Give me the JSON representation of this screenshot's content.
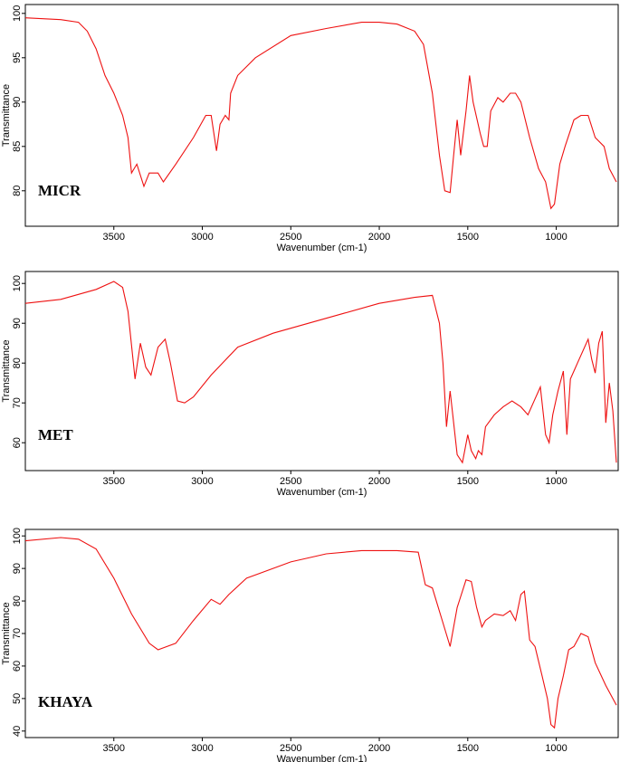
{
  "chart_data": [
    {
      "type": "line",
      "annotation": "MICR",
      "xlabel": "Wavenumber (cm-1)",
      "ylabel": "Transmittance",
      "color": "#ee1111",
      "xlim": [
        4000,
        650
      ],
      "xticks": [
        3500,
        3000,
        2500,
        2000,
        1500,
        1000
      ],
      "ylim": [
        76,
        101
      ],
      "yticks": [
        80,
        85,
        90,
        95,
        100
      ],
      "x": [
        4000,
        3800,
        3700,
        3650,
        3600,
        3550,
        3500,
        3450,
        3420,
        3400,
        3370,
        3330,
        3300,
        3250,
        3220,
        3150,
        3050,
        2980,
        2950,
        2920,
        2900,
        2870,
        2850,
        2840,
        2800,
        2700,
        2500,
        2300,
        2100,
        2000,
        1900,
        1800,
        1750,
        1700,
        1660,
        1630,
        1600,
        1580,
        1560,
        1540,
        1510,
        1490,
        1470,
        1430,
        1410,
        1390,
        1370,
        1330,
        1300,
        1260,
        1230,
        1200,
        1150,
        1100,
        1060,
        1030,
        1010,
        980,
        950,
        900,
        860,
        820,
        780,
        730,
        700,
        660
      ],
      "values": [
        99.5,
        99.3,
        99,
        98,
        96,
        93,
        91,
        88.5,
        86,
        82,
        83,
        80.5,
        82,
        82,
        81,
        83,
        86,
        88.5,
        88.5,
        84.5,
        87.5,
        88.5,
        88,
        91,
        93,
        95,
        97.5,
        98.3,
        99,
        99,
        98.8,
        98,
        96.5,
        91,
        84,
        80,
        79.8,
        84,
        88,
        84,
        89,
        93,
        90,
        86.5,
        85,
        85,
        89,
        90.5,
        90,
        91,
        91,
        90,
        86,
        82.5,
        81,
        78,
        78.5,
        83,
        85,
        88,
        88.5,
        88.5,
        86,
        85,
        82.5,
        81
      ]
    },
    {
      "type": "line",
      "annotation": "MET",
      "xlabel": "Wavenumber (cm-1)",
      "ylabel": "Transmittance",
      "color": "#ee1111",
      "xlim": [
        4000,
        650
      ],
      "xticks": [
        3500,
        3000,
        2500,
        2000,
        1500,
        1000
      ],
      "ylim": [
        53,
        103
      ],
      "yticks": [
        60,
        70,
        80,
        90,
        100
      ],
      "x": [
        4000,
        3800,
        3600,
        3500,
        3450,
        3420,
        3380,
        3350,
        3320,
        3290,
        3250,
        3210,
        3180,
        3140,
        3100,
        3050,
        2950,
        2800,
        2600,
        2400,
        2200,
        2000,
        1800,
        1700,
        1660,
        1640,
        1620,
        1600,
        1580,
        1560,
        1530,
        1500,
        1480,
        1455,
        1440,
        1420,
        1400,
        1350,
        1300,
        1250,
        1200,
        1160,
        1120,
        1090,
        1060,
        1040,
        1020,
        990,
        960,
        940,
        920,
        880,
        820,
        800,
        780,
        760,
        740,
        720,
        700,
        680,
        660
      ],
      "values": [
        95,
        96,
        98.5,
        100.5,
        99,
        93,
        76,
        85,
        79,
        77,
        84,
        86,
        80,
        70.5,
        70,
        71.5,
        77,
        84,
        87.5,
        90,
        92.5,
        95,
        96.5,
        97,
        90,
        80,
        64,
        73,
        65,
        57,
        55,
        62,
        58,
        56,
        58,
        57,
        64,
        67,
        69,
        70.5,
        69,
        67,
        71,
        74,
        62,
        60,
        67,
        73,
        78,
        62,
        76,
        80,
        86,
        81,
        77.5,
        85,
        88,
        65,
        75,
        68,
        55
      ]
    },
    {
      "type": "line",
      "annotation": "KHAYA",
      "xlabel": "Wavenumber (cm-1)",
      "ylabel": "Transmittance",
      "color": "#ee1111",
      "xlim": [
        4000,
        650
      ],
      "xticks": [
        3500,
        3000,
        2500,
        2000,
        1500,
        1000
      ],
      "ylim": [
        38,
        102
      ],
      "yticks": [
        40,
        50,
        60,
        70,
        80,
        90,
        100
      ],
      "x": [
        4000,
        3800,
        3700,
        3600,
        3500,
        3400,
        3300,
        3250,
        3150,
        3050,
        2950,
        2900,
        2850,
        2750,
        2500,
        2300,
        2100,
        1900,
        1780,
        1740,
        1700,
        1650,
        1600,
        1560,
        1510,
        1480,
        1450,
        1420,
        1400,
        1350,
        1300,
        1260,
        1230,
        1200,
        1180,
        1150,
        1120,
        1080,
        1050,
        1030,
        1010,
        990,
        960,
        930,
        900,
        860,
        820,
        780,
        720,
        660
      ],
      "values": [
        98.5,
        99.5,
        99,
        96,
        87,
        76,
        67,
        65,
        67,
        74,
        80.5,
        79,
        82,
        87,
        92,
        94.5,
        95.5,
        95.5,
        95,
        85,
        84,
        75,
        66,
        78,
        86.5,
        86,
        78,
        72,
        74,
        76,
        75.5,
        77,
        74,
        82,
        83,
        68,
        66,
        57,
        50,
        42,
        41,
        50,
        57,
        65,
        66,
        70,
        69,
        61,
        54,
        48
      ]
    }
  ]
}
